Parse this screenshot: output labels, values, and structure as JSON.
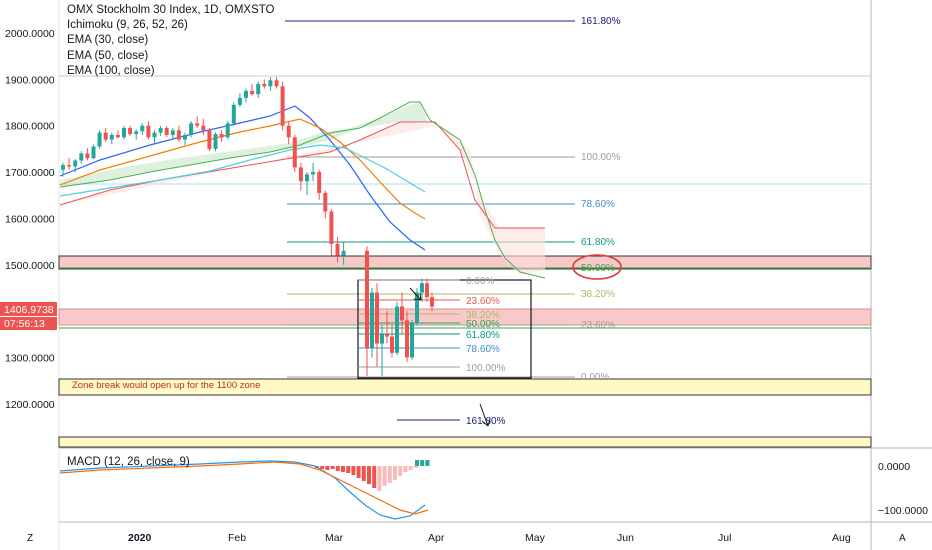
{
  "legend": {
    "title": "OMX Stockholm 30 Index, 1D, OMXSTO",
    "ichimoku": "Ichimoku (9, 26, 52, 26)",
    "ema30": "EMA (30, close)",
    "ema50": "EMA (50, close)",
    "ema100": "EMA (100, close)"
  },
  "macd_legend": "MACD (12, 26, close, 9)",
  "price_axis": {
    "ticks": [
      {
        "label": "2000.0000",
        "value": 2000
      },
      {
        "label": "1900.0000",
        "value": 1900
      },
      {
        "label": "1800.0000",
        "value": 1800
      },
      {
        "label": "1700.0000",
        "value": 1700
      },
      {
        "label": "1600.0000",
        "value": 1600
      },
      {
        "label": "1500.0000",
        "value": 1500
      },
      {
        "label": "1300.0000",
        "value": 1300
      },
      {
        "label": "1200.0000",
        "value": 1200
      }
    ],
    "last_price": "1406.9738",
    "countdown": "07:56:13"
  },
  "macd_axis": [
    {
      "label": "0.0000",
      "value": 0
    },
    {
      "label": "−100.0000",
      "value": -100
    }
  ],
  "time_axis": [
    "2020",
    "Feb",
    "Mar",
    "Apr",
    "May",
    "Jun",
    "Jul",
    "Aug"
  ],
  "zone_note": "Zone break would open up for the 1100 zone",
  "fib_big": [
    {
      "label": "161.80%",
      "color": "#1a237e"
    },
    {
      "label": "100.00%",
      "color": "#9e9e9e"
    },
    {
      "label": "78.60%",
      "color": "#3d8bd1"
    },
    {
      "label": "61.80%",
      "color": "#089981"
    },
    {
      "label": "50.00%",
      "color": "#43a047"
    },
    {
      "label": "38.20%",
      "color": "#b5b56a"
    },
    {
      "label": "23.60%",
      "color": "#9e9e9e"
    },
    {
      "label": "0.00%",
      "color": "#9e9e9e"
    }
  ],
  "fib_small": [
    {
      "label": "0.00%",
      "color": "#9e9e9e"
    },
    {
      "label": "23.60%",
      "color": "#ef5350"
    },
    {
      "label": "38.20%",
      "color": "#b5b56a"
    },
    {
      "label": "50.00%",
      "color": "#43a047"
    },
    {
      "label": "61.80%",
      "color": "#089981"
    },
    {
      "label": "78.60%",
      "color": "#3d8bd1"
    },
    {
      "label": "100.00%",
      "color": "#9e9e9e"
    },
    {
      "label": "161.80%",
      "color": "#1a237e"
    }
  ],
  "corner": {
    "left": "Z",
    "right": "A"
  },
  "colors": {
    "up": "#26a69a",
    "down": "#ef5350",
    "zone_red": "#f8c9c9",
    "zone_yellow": "#fff9c4",
    "circle": "#e53935"
  }
}
